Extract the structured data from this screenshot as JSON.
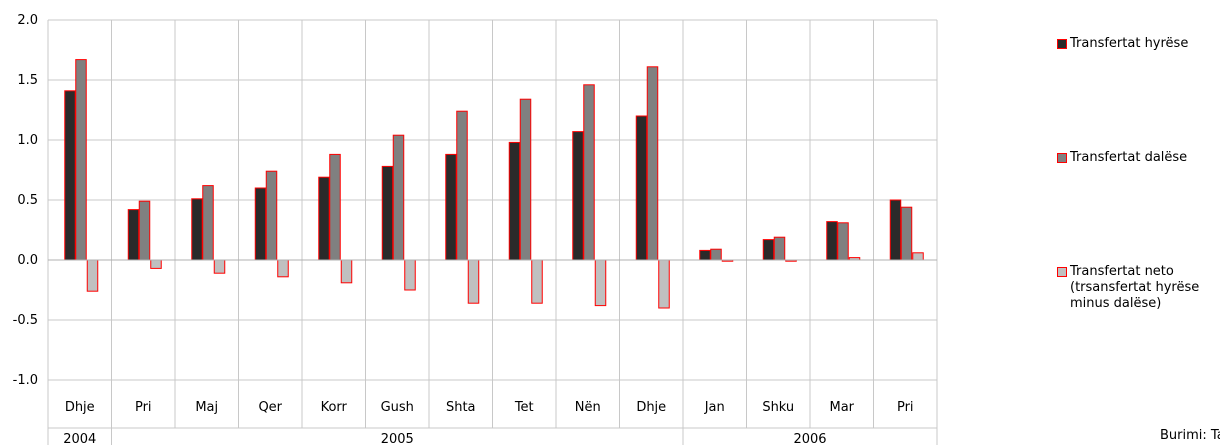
{
  "chart_data": {
    "type": "bar",
    "title": "",
    "xlabel": "",
    "ylabel": "",
    "ylim": [
      -1.0,
      2.0
    ],
    "yticks": [
      "2.0",
      "1.5",
      "1.0",
      "0.5",
      "0.0",
      "-0.5",
      "-1.0"
    ],
    "ytick_values": [
      2.0,
      1.5,
      1.0,
      0.5,
      0.0,
      -0.5,
      -1.0
    ],
    "grid": true,
    "legend_position": "right",
    "categories": [
      "Dhje",
      "Pri",
      "Maj",
      "Qer",
      "Korr",
      "Gush",
      "Shta",
      "Tet",
      "Nën",
      "Dhje",
      "Jan",
      "Shku",
      "Mar",
      "Pri"
    ],
    "year_groups": [
      {
        "label": "2004",
        "start": 0,
        "end": 0
      },
      {
        "label": "2005",
        "start": 1,
        "end": 9
      },
      {
        "label": "2006",
        "start": 10,
        "end": 13
      }
    ],
    "series": [
      {
        "name": "Transfertat hyrëse",
        "color": "#2a2a2a",
        "values": [
          1.41,
          0.42,
          0.51,
          0.6,
          0.69,
          0.78,
          0.88,
          0.98,
          1.07,
          1.2,
          0.08,
          0.17,
          0.32,
          0.5
        ]
      },
      {
        "name": "Transfertat dalëse",
        "color": "#808080",
        "values": [
          1.67,
          0.49,
          0.62,
          0.74,
          0.88,
          1.04,
          1.24,
          1.34,
          1.46,
          1.61,
          0.09,
          0.19,
          0.31,
          0.44
        ]
      },
      {
        "name": "Transfertat neto\n(trsansfertat hyrëse\nminus dalëse)",
        "color": "#c0c0c0",
        "values": [
          -0.26,
          -0.07,
          -0.11,
          -0.14,
          -0.19,
          -0.25,
          -0.36,
          -0.36,
          -0.38,
          -0.4,
          -0.01,
          -0.01,
          0.02,
          0.06
        ]
      }
    ],
    "bar_border_color": "#ff0000"
  },
  "source_text": "Burimi: Tab"
}
